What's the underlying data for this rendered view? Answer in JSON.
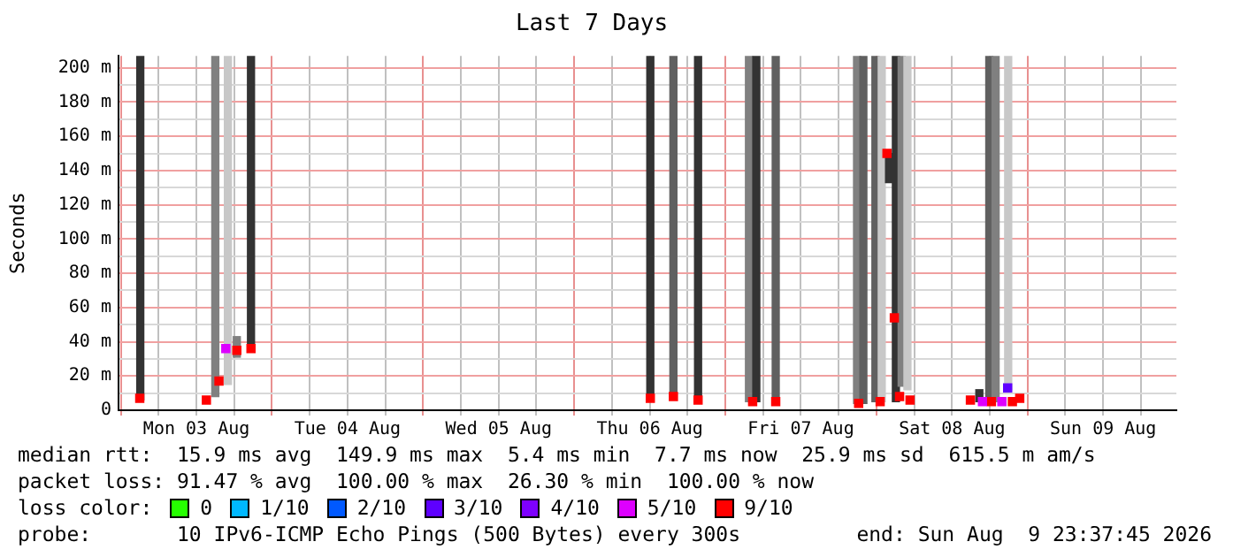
{
  "chart_data": {
    "type": "bar",
    "title": "Last 7 Days",
    "ylabel": "Seconds",
    "xlim": [
      "2026-08-02T23:37:45",
      "2026-08-09T23:37:45"
    ],
    "xticks": [
      {
        "value": "2026-08-03T00:00",
        "label": null
      },
      {
        "value": "2026-08-03T06:00",
        "label": null
      },
      {
        "value": "2026-08-03T12:00",
        "label": "Mon 03 Aug"
      },
      {
        "value": "2026-08-03T18:00",
        "label": null
      },
      {
        "value": "2026-08-04T00:00",
        "label": null
      },
      {
        "value": "2026-08-04T06:00",
        "label": null
      },
      {
        "value": "2026-08-04T12:00",
        "label": "Tue 04 Aug"
      },
      {
        "value": "2026-08-04T18:00",
        "label": null
      },
      {
        "value": "2026-08-05T00:00",
        "label": null
      },
      {
        "value": "2026-08-05T06:00",
        "label": null
      },
      {
        "value": "2026-08-05T12:00",
        "label": "Wed 05 Aug"
      },
      {
        "value": "2026-08-05T18:00",
        "label": null
      },
      {
        "value": "2026-08-06T00:00",
        "label": null
      },
      {
        "value": "2026-08-06T06:00",
        "label": null
      },
      {
        "value": "2026-08-06T12:00",
        "label": "Thu 06 Aug"
      },
      {
        "value": "2026-08-06T18:00",
        "label": null
      },
      {
        "value": "2026-08-07T00:00",
        "label": null
      },
      {
        "value": "2026-08-07T06:00",
        "label": null
      },
      {
        "value": "2026-08-07T12:00",
        "label": "Fri 07 Aug"
      },
      {
        "value": "2026-08-07T18:00",
        "label": null
      },
      {
        "value": "2026-08-08T00:00",
        "label": null
      },
      {
        "value": "2026-08-08T06:00",
        "label": null
      },
      {
        "value": "2026-08-08T12:00",
        "label": "Sat 08 Aug"
      },
      {
        "value": "2026-08-08T18:00",
        "label": null
      },
      {
        "value": "2026-08-09T00:00",
        "label": null
      },
      {
        "value": "2026-08-09T06:00",
        "label": null
      },
      {
        "value": "2026-08-09T12:00",
        "label": "Sun 09 Aug"
      },
      {
        "value": "2026-08-09T18:00",
        "label": null
      }
    ],
    "ylim": [
      0,
      207
    ],
    "yticks": [
      0,
      {
        "value": 10,
        "label": null
      },
      {
        "value": 20,
        "label": "20 m"
      },
      {
        "value": 30,
        "label": null
      },
      {
        "value": 40,
        "label": "40 m"
      },
      {
        "value": 50,
        "label": null
      },
      {
        "value": 60,
        "label": "60 m"
      },
      {
        "value": 70,
        "label": null
      },
      {
        "value": 80,
        "label": "80 m"
      },
      {
        "value": 90,
        "label": null
      },
      {
        "value": 100,
        "label": "100 m"
      },
      {
        "value": 110,
        "label": null
      },
      {
        "value": 120,
        "label": "120 m"
      },
      {
        "value": 130,
        "label": null
      },
      {
        "value": 140,
        "label": "140 m"
      },
      {
        "value": 150,
        "label": null
      },
      {
        "value": 160,
        "label": "160 m"
      },
      {
        "value": 170,
        "label": null
      },
      {
        "value": 180,
        "label": "180 m"
      },
      {
        "value": 190,
        "label": null
      },
      {
        "value": 200,
        "label": "200 m"
      }
    ],
    "grid": true,
    "legend": "bottom",
    "legend_title": "loss color:",
    "marker": "square",
    "series": [
      {
        "x": [
          "2026-08-03T03:05",
          "2026-08-03T15:00",
          "2026-08-03T17:00",
          "2026-08-03T18:25",
          "2026-08-03T20:40",
          "2026-08-06T12:05",
          "2026-08-06T15:45",
          "2026-08-06T19:40",
          "2026-08-07T03:45",
          "2026-08-07T04:55",
          "2026-08-07T08:00",
          "2026-08-07T20:55",
          "2026-08-07T21:55",
          "2026-08-07T23:50",
          "2026-08-08T00:50",
          "2026-08-08T02:00",
          "2026-08-08T03:05",
          "2026-08-08T04:00",
          "2026-08-08T04:30",
          "2026-08-08T04:55",
          "2026-08-08T16:20",
          "2026-08-08T17:55",
          "2026-08-08T18:55",
          "2026-08-08T20:55"
        ],
        "base": [
          6,
          8,
          15,
          31,
          34,
          6,
          8,
          6,
          5,
          5,
          5,
          4,
          4,
          5,
          5,
          133,
          5,
          14,
          null,
          12,
          5,
          5,
          5,
          12
        ],
        "values": [
          201,
          199,
          192,
          12,
          173,
          201,
          199,
          201,
          202,
          202,
          202,
          203,
          203,
          202,
          202,
          17,
          202,
          193,
          null,
          195,
          7,
          202,
          202,
          195
        ],
        "colors": [
          "#333333",
          "#808080",
          "#c8c8c8",
          "#808080",
          "#333333",
          "#333333",
          "#606060",
          "#333333",
          "#808080",
          "#333333",
          "#606060",
          "#808080",
          "#606060",
          "#606060",
          "#c8c8c8",
          "#333333",
          "#333333",
          "#808080",
          "#333333",
          "#c8c8c8",
          "#333333",
          "#606060",
          "#808080",
          "#c8c8c8"
        ]
      },
      {
        "type": "scatter",
        "name": "0",
        "color": "#26ff00"
      },
      {
        "type": "scatter",
        "name": "1/10",
        "color": "#00b8ff"
      },
      {
        "type": "scatter",
        "name": "2/10",
        "color": "#0059ff"
      },
      {
        "type": "scatter",
        "name": "3/10",
        "color": "#5e00ff",
        "x": [
          "2026-08-08T20:50"
        ],
        "values": [
          13
        ]
      },
      {
        "type": "scatter",
        "name": "4/10",
        "color": "#7e00ff"
      },
      {
        "type": "scatter",
        "name": "5/10",
        "color": "#dd00ff",
        "x": [
          "2026-08-03T16:40",
          "2026-08-08T16:50",
          "2026-08-08T19:55"
        ],
        "values": [
          36,
          5,
          5
        ]
      },
      {
        "type": "scatter",
        "name": "9/10",
        "color": "#ff0000",
        "x": [
          "2026-08-03T03:00",
          "2026-08-03T13:35",
          "2026-08-03T15:35",
          "2026-08-03T18:25",
          "2026-08-03T20:40",
          "2026-08-06T12:05",
          "2026-08-06T15:45",
          "2026-08-06T19:40",
          "2026-08-07T04:20",
          "2026-08-07T08:00",
          "2026-08-07T21:10",
          "2026-08-08T00:35",
          "2026-08-08T01:40",
          "2026-08-08T02:50",
          "2026-08-08T03:40",
          "2026-08-08T05:20",
          "2026-08-08T14:55",
          "2026-08-08T18:15",
          "2026-08-08T21:35",
          "2026-08-08T22:45"
        ],
        "values": [
          7,
          6,
          17,
          35,
          36,
          7,
          8,
          6,
          5,
          5,
          4,
          5,
          150,
          54,
          8,
          6,
          6,
          5,
          5,
          7
        ]
      }
    ],
    "annotations": [
      "median rtt:  15.9 ms avg  149.9 ms max  5.4 ms min  7.7 ms now  25.9 ms sd  615.5 m am/s",
      "packet loss: 91.47 % avg  100.00 % max  26.30 % min  100.00 % now",
      "probe:       10 IPv6-ICMP Echo Pings (500 Bytes) every 300s",
      "end: Sun Aug  9 23:37:45 2026"
    ]
  }
}
